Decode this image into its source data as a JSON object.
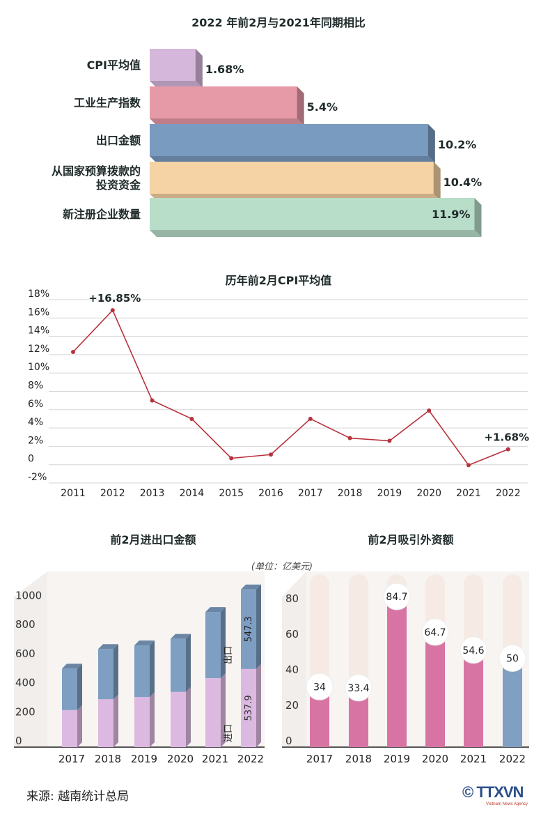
{
  "comparison": {
    "title": "2022 年前2月与2021年同期相比",
    "items": [
      {
        "label": "CPI平均值",
        "value_text": "1.68%",
        "value": 1.68,
        "color": "#d6b7dc"
      },
      {
        "label": "工业生产指数",
        "value_text": "5.4%",
        "value": 5.4,
        "color": "#e69aa8"
      },
      {
        "label": "出口金额",
        "value_text": "10.2%",
        "value": 10.2,
        "color": "#7a9bc0"
      },
      {
        "label": "从国家预算拨款的\n投资资金",
        "value_text": "10.4%",
        "value": 10.4,
        "color": "#f5d3a5"
      },
      {
        "label": "新注册企业数量",
        "value_text": "11.9%",
        "value": 11.9,
        "color": "#b8ddc9"
      }
    ]
  },
  "cpi": {
    "title": "历年前2月CPI平均值",
    "y_ticks": [
      "18%",
      "16%",
      "14%",
      "12%",
      "10%",
      "8%",
      "6%",
      "4%",
      "2%",
      "0",
      "-2%"
    ],
    "y_tick_values": [
      18,
      16,
      14,
      12,
      10,
      8,
      6,
      4,
      2,
      0,
      -2
    ],
    "ylim": [
      -2,
      18
    ],
    "years": [
      "2011",
      "2012",
      "2013",
      "2014",
      "2015",
      "2016",
      "2017",
      "2018",
      "2019",
      "2020",
      "2021",
      "2022"
    ],
    "values": [
      12.3,
      16.85,
      7.0,
      5.0,
      0.7,
      1.1,
      5.0,
      2.9,
      2.6,
      5.9,
      -0.05,
      1.68
    ],
    "annotations": [
      {
        "index": 1,
        "text": "+16.85%"
      },
      {
        "index": 11,
        "text": "+1.68%"
      }
    ],
    "line_color": "#b8323c"
  },
  "trade": {
    "title": "前2月进出口金额",
    "unit": "(单位：亿美元)",
    "y_ticks": [
      "1000",
      "800",
      "600",
      "400",
      "200",
      "0"
    ],
    "y_tick_values": [
      1000,
      800,
      600,
      400,
      200,
      0
    ],
    "ylim": [
      0,
      1100
    ],
    "years": [
      "2017",
      "2018",
      "2019",
      "2020",
      "2021",
      "2022"
    ],
    "import_values": [
      255,
      330,
      345,
      380,
      475,
      537.9
    ],
    "export_values": [
      285,
      345,
      355,
      365,
      455,
      547.3
    ],
    "import_label": "进口",
    "import_value_text": "537.9",
    "export_label": "出口",
    "export_value_text": "547.3",
    "import_color": "#dcb9e0",
    "export_color": "#7e9ec2"
  },
  "fdi": {
    "title": "前2月吸引外资额",
    "y_ticks": [
      "80",
      "60",
      "40",
      "20",
      "0"
    ],
    "y_tick_values": [
      80,
      60,
      40,
      20,
      0
    ],
    "ylim": [
      0,
      94
    ],
    "years": [
      "2017",
      "2018",
      "2019",
      "2020",
      "2021",
      "2022"
    ],
    "values": [
      34,
      33.4,
      84.7,
      64.7,
      54.6,
      50
    ],
    "value_texts": [
      "34",
      "33.4",
      "84.7",
      "64.7",
      "54.6",
      "50"
    ],
    "bar_color": "#d874a4",
    "last_bar_color": "#7f9fc3",
    "track_color": "#f5ebe4"
  },
  "footer": {
    "source": "来源: 越南统计总局",
    "logo_text": "© TTXVN",
    "logo_sub": "Vietnam News Agency"
  }
}
